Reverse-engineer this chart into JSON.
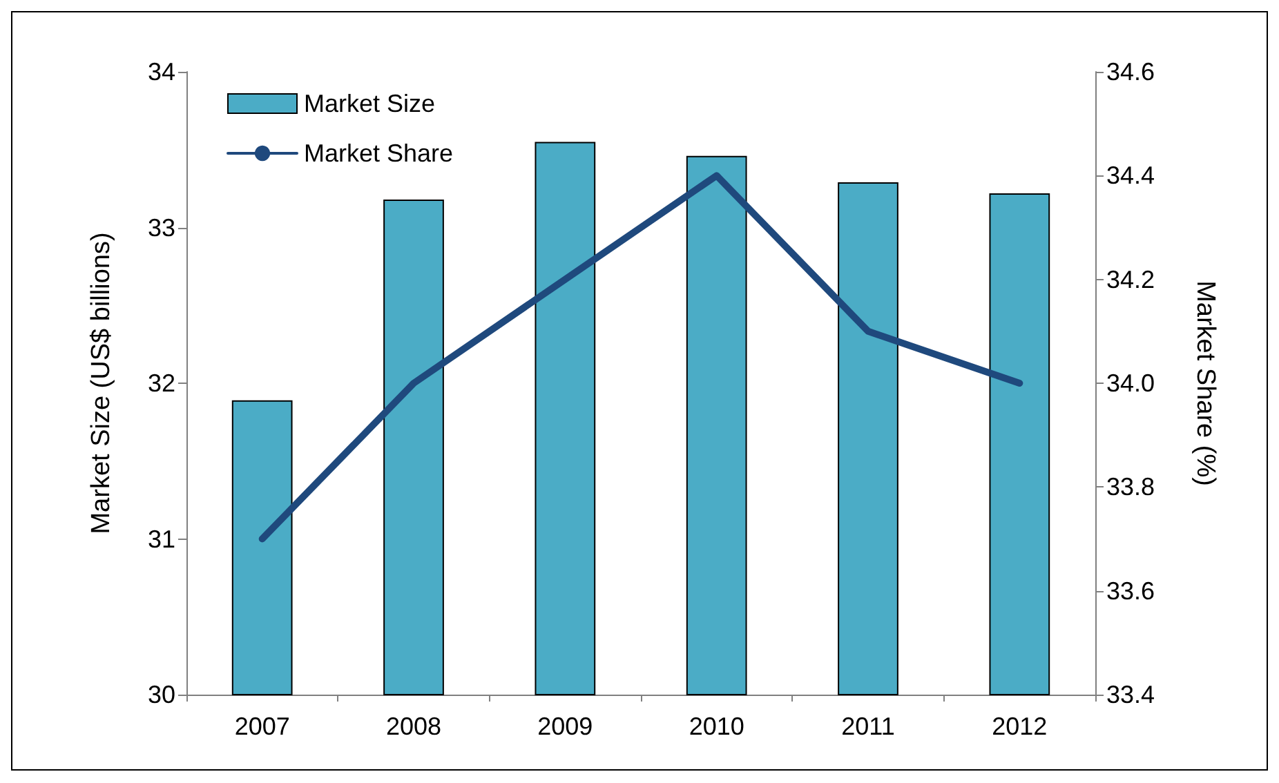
{
  "chart_data": {
    "type": "bar",
    "categories": [
      "2007",
      "2008",
      "2009",
      "2010",
      "2011",
      "2012"
    ],
    "series": [
      {
        "name": "Market Size",
        "color": "#4bacc6",
        "values": [
          31.89,
          33.18,
          33.55,
          33.46,
          33.29,
          33.22
        ]
      },
      {
        "name": "Market Share",
        "type": "line",
        "axis": "y2",
        "color": "#1f497d",
        "values": [
          33.7,
          34.0,
          34.2,
          34.4,
          34.1,
          34.0
        ]
      }
    ],
    "ylabel": "Market Size (US$ billions)",
    "y2label": "Market Share (%)",
    "ylim": [
      30,
      34
    ],
    "yticks": [
      30,
      31,
      32,
      33,
      34
    ],
    "y2lim": [
      33.4,
      34.6
    ],
    "y2ticks": [
      {
        "value": 33.4,
        "label": "33.4"
      },
      {
        "value": 33.6,
        "label": "33.6"
      },
      {
        "value": 33.8,
        "label": "33.8"
      },
      {
        "value": 34.0,
        "label": "34.0"
      },
      {
        "value": 34.2,
        "label": "34.2"
      },
      {
        "value": 34.4,
        "label": "34.4"
      },
      {
        "value": 34.6,
        "label": "34.6"
      }
    ],
    "grid": false,
    "legend": "top left",
    "marker": "none",
    "line_style": "solid"
  }
}
